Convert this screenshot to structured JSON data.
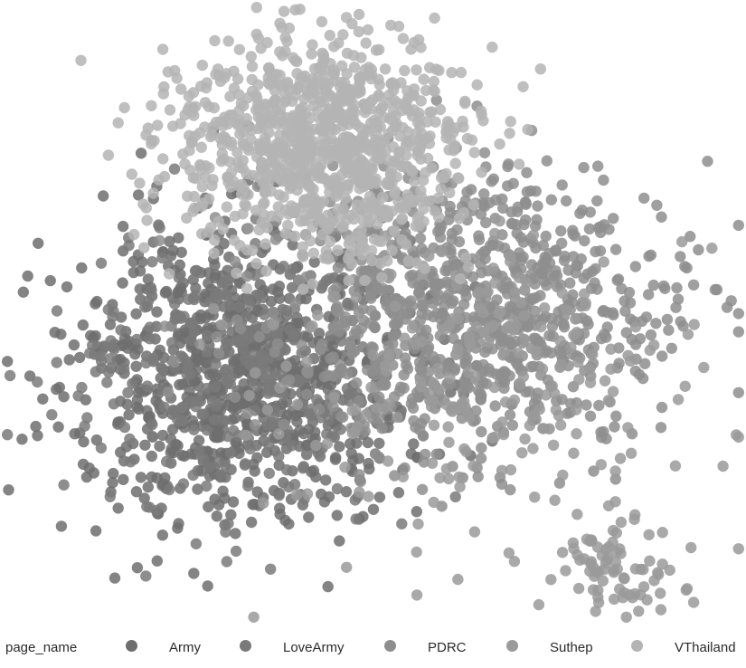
{
  "chart_data": {
    "type": "scatter",
    "title": "",
    "xlabel": "",
    "ylabel": "",
    "axes_visible": false,
    "grid": false,
    "legend": {
      "title": "page_name",
      "placement": "bottom"
    },
    "series": [
      {
        "name": "Army",
        "color": "#6e6e6e",
        "cluster": "left",
        "approx_points": 900
      },
      {
        "name": "LoveArmy",
        "color": "#7a7a7a",
        "cluster": "left",
        "approx_points": 300
      },
      {
        "name": "PDRC",
        "color": "#8e8e8e",
        "cluster": "right",
        "approx_points": 900
      },
      {
        "name": "Suthep",
        "color": "#9a9a9a",
        "cluster": "right-and-bottom-right",
        "approx_points": 300
      },
      {
        "name": "VThailand",
        "color": "#b4b4b4",
        "cluster": "top",
        "approx_points": 1000
      }
    ]
  }
}
